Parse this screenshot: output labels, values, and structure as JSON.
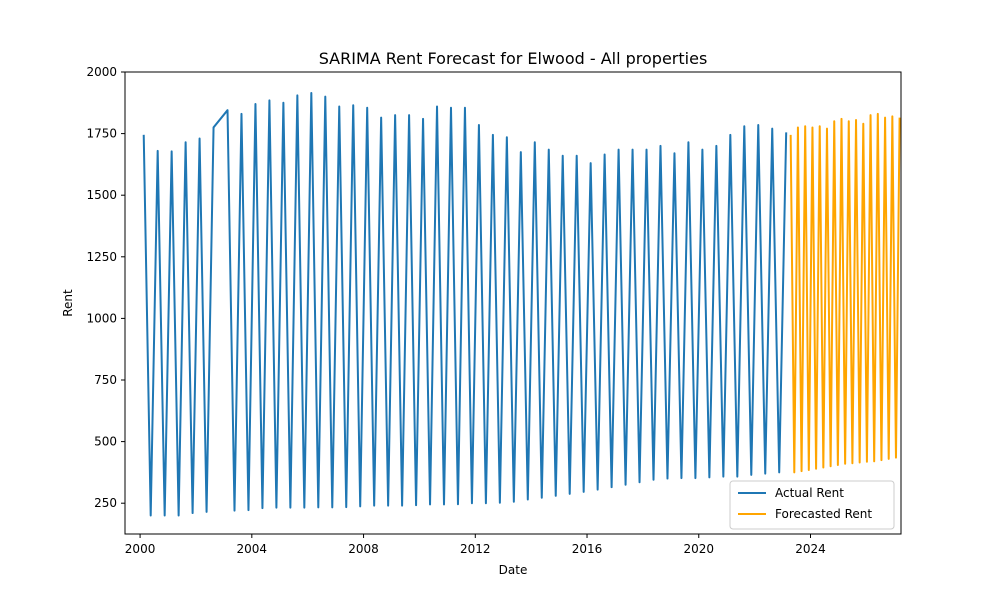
{
  "chart_data": {
    "type": "line",
    "title": "SARIMA Rent Forecast for Elwood - All properties",
    "xlabel": "Date",
    "ylabel": "Rent",
    "xlim": [
      1999.46,
      2027.24
    ],
    "ylim": [
      125,
      2000
    ],
    "xticks": [
      2000,
      2004,
      2008,
      2012,
      2016,
      2020,
      2024
    ],
    "yticks": [
      250,
      500,
      750,
      1000,
      1250,
      1500,
      1750,
      2000
    ],
    "grid": false,
    "legend_position": "lower right",
    "series": [
      {
        "name": "Actual Rent",
        "color": "#1f77b4",
        "points": [
          [
            2000.13,
            1745
          ],
          [
            2000.38,
            200
          ],
          [
            2000.63,
            1680
          ],
          [
            2000.88,
            200
          ],
          [
            2001.13,
            1678
          ],
          [
            2001.38,
            200
          ],
          [
            2001.63,
            1715
          ],
          [
            2001.88,
            210
          ],
          [
            2002.13,
            1730
          ],
          [
            2002.38,
            215
          ],
          [
            2002.63,
            1775
          ],
          [
            2003.13,
            1845
          ],
          [
            2003.38,
            220
          ],
          [
            2003.63,
            1830
          ],
          [
            2003.88,
            222
          ],
          [
            2004.13,
            1870
          ],
          [
            2004.38,
            230
          ],
          [
            2004.63,
            1885
          ],
          [
            2004.88,
            232
          ],
          [
            2005.13,
            1875
          ],
          [
            2005.38,
            232
          ],
          [
            2005.63,
            1905
          ],
          [
            2005.88,
            232
          ],
          [
            2006.13,
            1915
          ],
          [
            2006.38,
            233
          ],
          [
            2006.63,
            1900
          ],
          [
            2006.88,
            233
          ],
          [
            2007.13,
            1860
          ],
          [
            2007.38,
            234
          ],
          [
            2007.63,
            1865
          ],
          [
            2007.88,
            237
          ],
          [
            2008.13,
            1855
          ],
          [
            2008.38,
            240
          ],
          [
            2008.63,
            1815
          ],
          [
            2008.88,
            240
          ],
          [
            2009.13,
            1825
          ],
          [
            2009.38,
            240
          ],
          [
            2009.63,
            1825
          ],
          [
            2009.88,
            242
          ],
          [
            2010.13,
            1810
          ],
          [
            2010.38,
            245
          ],
          [
            2010.63,
            1860
          ],
          [
            2010.88,
            245
          ],
          [
            2011.13,
            1855
          ],
          [
            2011.38,
            246
          ],
          [
            2011.63,
            1855
          ],
          [
            2011.88,
            250
          ],
          [
            2012.13,
            1785
          ],
          [
            2012.38,
            250
          ],
          [
            2012.63,
            1745
          ],
          [
            2012.88,
            252
          ],
          [
            2013.13,
            1735
          ],
          [
            2013.38,
            256
          ],
          [
            2013.63,
            1675
          ],
          [
            2013.88,
            265
          ],
          [
            2014.13,
            1715
          ],
          [
            2014.38,
            272
          ],
          [
            2014.63,
            1685
          ],
          [
            2014.88,
            280
          ],
          [
            2015.13,
            1660
          ],
          [
            2015.38,
            288
          ],
          [
            2015.63,
            1660
          ],
          [
            2015.88,
            296
          ],
          [
            2016.13,
            1630
          ],
          [
            2016.38,
            305
          ],
          [
            2016.63,
            1665
          ],
          [
            2016.88,
            315
          ],
          [
            2017.13,
            1685
          ],
          [
            2017.38,
            325
          ],
          [
            2017.63,
            1685
          ],
          [
            2017.88,
            335
          ],
          [
            2018.13,
            1685
          ],
          [
            2018.38,
            345
          ],
          [
            2018.63,
            1700
          ],
          [
            2018.88,
            350
          ],
          [
            2019.13,
            1670
          ],
          [
            2019.38,
            352
          ],
          [
            2019.63,
            1715
          ],
          [
            2019.88,
            352
          ],
          [
            2020.13,
            1685
          ],
          [
            2020.38,
            355
          ],
          [
            2020.63,
            1700
          ],
          [
            2020.88,
            358
          ],
          [
            2021.13,
            1745
          ],
          [
            2021.38,
            358
          ],
          [
            2021.63,
            1780
          ],
          [
            2021.88,
            365
          ],
          [
            2022.13,
            1785
          ],
          [
            2022.38,
            370
          ],
          [
            2022.63,
            1770
          ],
          [
            2022.88,
            375
          ],
          [
            2023.13,
            1755
          ]
        ]
      },
      {
        "name": "Forecasted Rent",
        "color": "#ffa500",
        "points": [
          [
            2023.29,
            1745
          ],
          [
            2023.42,
            375
          ],
          [
            2023.55,
            1775
          ],
          [
            2023.68,
            380
          ],
          [
            2023.81,
            1780
          ],
          [
            2023.94,
            385
          ],
          [
            2024.07,
            1775
          ],
          [
            2024.2,
            390
          ],
          [
            2024.33,
            1780
          ],
          [
            2024.46,
            395
          ],
          [
            2024.59,
            1770
          ],
          [
            2024.72,
            400
          ],
          [
            2024.85,
            1800
          ],
          [
            2024.98,
            405
          ],
          [
            2025.11,
            1810
          ],
          [
            2025.24,
            410
          ],
          [
            2025.37,
            1800
          ],
          [
            2025.5,
            412
          ],
          [
            2025.63,
            1805
          ],
          [
            2025.76,
            415
          ],
          [
            2025.89,
            1790
          ],
          [
            2026.02,
            418
          ],
          [
            2026.15,
            1825
          ],
          [
            2026.28,
            420
          ],
          [
            2026.41,
            1830
          ],
          [
            2026.54,
            425
          ],
          [
            2026.67,
            1815
          ],
          [
            2026.8,
            430
          ],
          [
            2026.93,
            1820
          ],
          [
            2027.06,
            435
          ],
          [
            2027.19,
            1815
          ]
        ]
      }
    ]
  }
}
